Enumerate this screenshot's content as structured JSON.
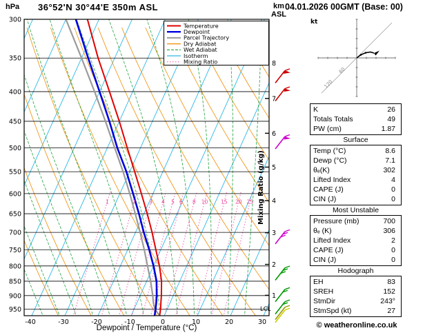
{
  "header": {
    "pressure_unit": "hPa",
    "station": "36°52'N 30°44'E 350m ASL",
    "altitude_unit_top": "km",
    "altitude_unit_bottom": "ASL",
    "datetime": "04.01.2026 00GMT (Base: 00)"
  },
  "axes": {
    "pressure_ticks": [
      300,
      350,
      400,
      450,
      500,
      550,
      600,
      650,
      700,
      750,
      800,
      850,
      900,
      950
    ],
    "temp_ticks": [
      -40,
      -30,
      -20,
      -10,
      0,
      10,
      20,
      30
    ],
    "xlabel": "Dewpoint / Temperature (°C)",
    "km_ticks": [
      8,
      7,
      6,
      5,
      4,
      3,
      2,
      1
    ],
    "lcl_label": "LCL",
    "mixing_ratio_axis_label": "Mixing Ratio (g/kg)",
    "mixing_ratio_values": [
      1,
      2,
      3,
      4,
      5,
      6,
      8,
      10,
      15,
      20,
      25
    ]
  },
  "legend": [
    {
      "label": "Temperature",
      "color": "#e00000",
      "style": "solid"
    },
    {
      "label": "Dewpoint",
      "color": "#0000dd",
      "style": "solid"
    },
    {
      "label": "Parcel Trajectory",
      "color": "#9a9a9a",
      "style": "solid"
    },
    {
      "label": "Dry Adiabat",
      "color": "#f08c00",
      "style": "solid"
    },
    {
      "label": "Wet Adiabat",
      "color": "#1fa33c",
      "style": "dashed"
    },
    {
      "label": "Isotherm",
      "color": "#2db8e8",
      "style": "solid"
    },
    {
      "label": "Mixing Ratio",
      "color": "#f060b0",
      "style": "dotted"
    }
  ],
  "chart_data": {
    "type": "skewt-log-p-sounding",
    "pressure_range": [
      300,
      975
    ],
    "temp_axis_range": [
      -40,
      35
    ],
    "grid": "on",
    "temperature_profile": [
      [
        975,
        8.6
      ],
      [
        950,
        8
      ],
      [
        925,
        7.2
      ],
      [
        900,
        6.4
      ],
      [
        850,
        4.5
      ],
      [
        800,
        1.8
      ],
      [
        750,
        -1.5
      ],
      [
        700,
        -5
      ],
      [
        650,
        -9
      ],
      [
        600,
        -13.5
      ],
      [
        550,
        -18.5
      ],
      [
        500,
        -24
      ],
      [
        450,
        -30
      ],
      [
        400,
        -37
      ],
      [
        350,
        -45
      ],
      [
        300,
        -53.5
      ]
    ],
    "dewpoint_profile": [
      [
        975,
        7.1
      ],
      [
        950,
        6.5
      ],
      [
        925,
        5.8
      ],
      [
        900,
        5
      ],
      [
        850,
        3
      ],
      [
        800,
        0
      ],
      [
        750,
        -3.5
      ],
      [
        700,
        -7.5
      ],
      [
        650,
        -11.5
      ],
      [
        600,
        -16
      ],
      [
        550,
        -21
      ],
      [
        500,
        -27
      ],
      [
        450,
        -33
      ],
      [
        400,
        -40
      ],
      [
        350,
        -48
      ],
      [
        300,
        -57
      ]
    ],
    "parcel_profile": [
      [
        975,
        8.6
      ],
      [
        950,
        6.3
      ],
      [
        925,
        4.9
      ],
      [
        900,
        3.8
      ],
      [
        850,
        1.2
      ],
      [
        800,
        -1.8
      ],
      [
        750,
        -5
      ],
      [
        700,
        -8.6
      ],
      [
        650,
        -12.6
      ],
      [
        600,
        -17
      ],
      [
        550,
        -22
      ],
      [
        500,
        -27.8
      ],
      [
        450,
        -34.2
      ],
      [
        400,
        -41.5
      ],
      [
        350,
        -50
      ],
      [
        300,
        -60
      ]
    ],
    "km_tick_pressures": {
      "8": 357,
      "7": 411,
      "6": 472,
      "5": 540,
      "4": 617,
      "3": 701,
      "2": 795,
      "1": 899
    },
    "wind_barbs": [
      {
        "pressure": 377,
        "color": "#cc0000",
        "flag": true,
        "ticks": 2
      },
      {
        "pressure": 405,
        "color": "#cc0000",
        "flag": true,
        "ticks": 1
      },
      {
        "pressure": 490,
        "color": "#cc00cc",
        "flag": true,
        "ticks": 1
      },
      {
        "pressure": 715,
        "color": "#cc00cc",
        "flag": false,
        "ticks": 3
      },
      {
        "pressure": 826,
        "color": "#009900",
        "flag": false,
        "ticks": 3
      },
      {
        "pressure": 900,
        "color": "#009900",
        "flag": false,
        "ticks": 2
      },
      {
        "pressure": 945,
        "color": "#009900",
        "flag": false,
        "ticks": 2
      },
      {
        "pressure": 966,
        "color": "#999900",
        "flag": false,
        "ticks": 1
      },
      {
        "pressure": 977,
        "color": "#cccc00",
        "flag": false,
        "ticks": 1
      }
    ]
  },
  "hodograph": {
    "unit": "kt",
    "ring_labels": [
      {
        "value": "60",
        "r": 28
      },
      {
        "value": "120",
        "r": 56
      }
    ]
  },
  "tables": [
    {
      "rows": [
        [
          "K",
          "26"
        ],
        [
          "Totals Totals",
          "49"
        ],
        [
          "PW (cm)",
          "1.87"
        ]
      ]
    },
    {
      "title": "Surface",
      "rows": [
        [
          "Temp (°C)",
          "8.6"
        ],
        [
          "Dewp (°C)",
          "7.1"
        ],
        [
          "θₑ(K)",
          "302"
        ],
        [
          "Lifted Index",
          "4"
        ],
        [
          "CAPE (J)",
          "0"
        ],
        [
          "CIN (J)",
          "0"
        ]
      ]
    },
    {
      "title": "Most Unstable",
      "rows": [
        [
          "Pressure (mb)",
          "700"
        ],
        [
          "θₑ (K)",
          "306"
        ],
        [
          "Lifted Index",
          "2"
        ],
        [
          "CAPE (J)",
          "0"
        ],
        [
          "CIN (J)",
          "0"
        ]
      ]
    },
    {
      "title": "Hodograph",
      "rows": [
        [
          "EH",
          "83"
        ],
        [
          "SREH",
          "152"
        ],
        [
          "StmDir",
          "243°"
        ],
        [
          "StmSpd (kt)",
          "27"
        ]
      ]
    }
  ],
  "footer": {
    "copyright": "© weatheronline.co.uk"
  }
}
